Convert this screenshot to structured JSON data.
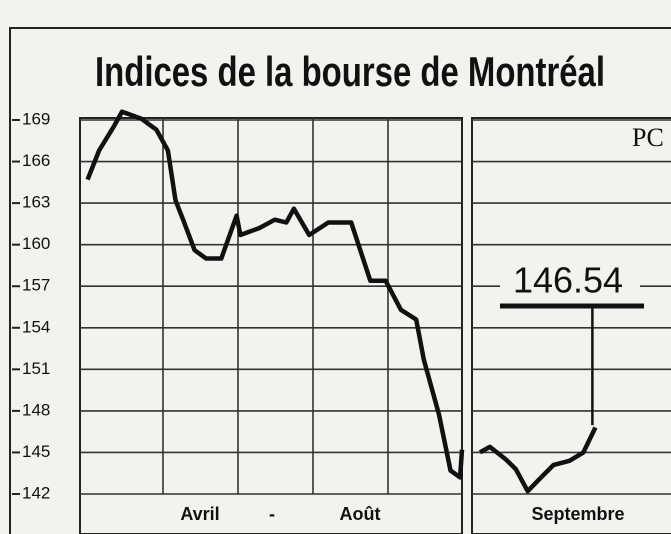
{
  "chart_data": [
    {
      "type": "line",
      "title": "Indices de la bourse de Montréal",
      "x_labels": [
        "Avril",
        "-",
        "Août"
      ],
      "xlim": [
        0,
        100
      ],
      "ylim": [
        142,
        169
      ],
      "yticks": [
        142,
        145,
        148,
        151,
        154,
        157,
        160,
        163,
        166,
        169
      ],
      "grid": true,
      "color": "#111",
      "x": [
        2,
        5,
        9,
        11,
        16,
        20,
        23,
        25,
        27,
        30,
        33,
        37,
        41,
        42,
        47,
        51,
        54,
        56,
        60,
        65,
        71,
        76,
        80,
        84,
        88,
        90,
        94,
        97,
        99.5,
        100
      ],
      "values": [
        164.7,
        166.8,
        168.6,
        169.6,
        169.1,
        168.3,
        166.8,
        163.2,
        161.8,
        159.6,
        159.0,
        159.0,
        162.1,
        160.7,
        161.2,
        161.8,
        161.6,
        162.6,
        160.7,
        161.6,
        161.6,
        157.4,
        157.4,
        155.3,
        154.6,
        151.7,
        147.7,
        143.7,
        143.2,
        145.2
      ]
    },
    {
      "type": "line",
      "x_labels": [
        "Septembre"
      ],
      "corner_label": "PC",
      "annotation": {
        "label": "146.54",
        "value": 146.54
      },
      "xlim": [
        0,
        100
      ],
      "ylim": [
        142,
        169
      ],
      "yticks": [
        142,
        145,
        148,
        151,
        154,
        157,
        160,
        163,
        166,
        169
      ],
      "grid": true,
      "color": "#111",
      "x": [
        4,
        9,
        17,
        22,
        28,
        34,
        41,
        49,
        56,
        62
      ],
      "values": [
        145.0,
        145.4,
        144.5,
        143.8,
        142.2,
        143.1,
        144.1,
        144.4,
        145.0,
        146.8
      ]
    }
  ]
}
